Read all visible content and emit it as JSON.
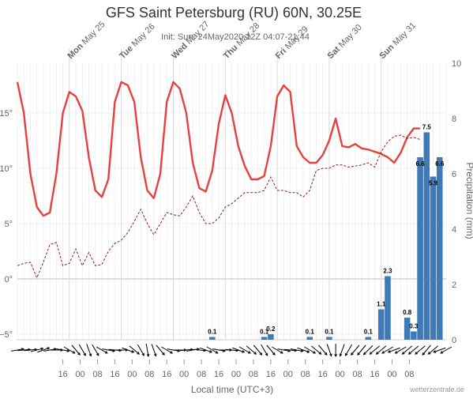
{
  "chart_data": {
    "type": "line",
    "title": "GFS Saint Petersburg (RU) 60N, 30.25E",
    "subtitle": "Init: Sun, 24May2020 12Z 04:07-21:44",
    "xlabel": "Local time (UTC+3)",
    "y2label": "Precipitation (mm)",
    "credit": "wetterzentrale.de",
    "x_hour_ticks": [
      "16",
      "00",
      "08",
      "16",
      "00",
      "08",
      "16",
      "00",
      "08",
      "16",
      "00",
      "08",
      "16",
      "00",
      "08",
      "16",
      "00",
      "08",
      "16",
      "00",
      "08"
    ],
    "day_labels": [
      {
        "bold": "Mon",
        "rest": " May 25"
      },
      {
        "bold": "Tue",
        "rest": " May 26"
      },
      {
        "bold": "Wed",
        "rest": " May 27"
      },
      {
        "bold": "Thu",
        "rest": " May 28"
      },
      {
        "bold": "Fri",
        "rest": " May 29"
      },
      {
        "bold": "Sat",
        "rest": " May 30"
      },
      {
        "bold": "Sun",
        "rest": " May 31"
      }
    ],
    "y_left": {
      "ticks": [
        -5,
        0,
        5,
        10,
        15
      ],
      "tick_labels": [
        "−5°",
        "0°",
        "5°",
        "10°",
        "15°"
      ],
      "range": [
        -5.5,
        19.5
      ]
    },
    "y_right": {
      "ticks": [
        0,
        2,
        4,
        6,
        8,
        10
      ],
      "tick_labels": [
        "0",
        "2",
        "4",
        "6",
        "8",
        "10"
      ],
      "range": [
        0,
        10
      ]
    },
    "x_hours_range": [
      -21,
      177
    ],
    "colors": {
      "temperature": "#e8403f",
      "dewpoint": "#8b2020",
      "precip": "#3d7ab8",
      "grid": "#e6e6e6",
      "zero": "#bbbbbb",
      "wind": "#000000"
    },
    "series": [
      {
        "type": "line",
        "style": "solid",
        "x": [
          -21,
          -18,
          -15,
          -12,
          -9,
          -6,
          -3,
          0,
          3,
          6,
          9,
          12,
          15,
          18,
          21,
          24,
          27,
          30,
          33,
          36,
          39,
          42,
          45,
          48,
          51,
          54,
          57,
          60,
          63,
          66,
          69,
          72,
          75,
          78,
          81,
          84,
          87,
          90,
          93,
          96,
          99,
          102,
          105,
          108,
          111,
          114,
          117,
          120,
          123,
          126,
          129,
          132,
          135,
          138,
          141,
          144,
          147,
          150,
          153,
          156,
          159,
          162,
          165,
          168,
          171,
          174,
          177
        ],
        "values": [
          17.8,
          15,
          9.5,
          6.5,
          5.7,
          6,
          9.5,
          15,
          16.9,
          16.5,
          15.2,
          11,
          8,
          7.4,
          9,
          16,
          17.8,
          17.5,
          16,
          11,
          8,
          7.3,
          9.5,
          16,
          17.8,
          17.2,
          15,
          10.5,
          8.2,
          7.9,
          9.8,
          14,
          16.6,
          15,
          12,
          10.2,
          9,
          9,
          9.3,
          12,
          16.5,
          17.5,
          16.9,
          12,
          11,
          10.5,
          10.5,
          11.2,
          12.5,
          14.5,
          12,
          11.9,
          12.2,
          11.8,
          11.7,
          11.5,
          11.3,
          11,
          10.5,
          11.4,
          12.8,
          13.6,
          13.6,
          null,
          null,
          null,
          null
        ]
      },
      {
        "type": "line",
        "style": "dashed",
        "x": [
          -21,
          -18,
          -15,
          -12,
          -9,
          -6,
          -3,
          0,
          3,
          6,
          9,
          12,
          15,
          18,
          21,
          24,
          27,
          30,
          33,
          36,
          39,
          42,
          45,
          48,
          51,
          54,
          57,
          60,
          63,
          66,
          69,
          72,
          75,
          78,
          81,
          84,
          87,
          90,
          93,
          96,
          99,
          102,
          105,
          108,
          111,
          114,
          117,
          120,
          123,
          126,
          129,
          132,
          135,
          138,
          141,
          144,
          147,
          150,
          153,
          156,
          159,
          162,
          165,
          168,
          171,
          174,
          177
        ],
        "values": [
          1.2,
          1.4,
          1.5,
          0.1,
          1.5,
          3.1,
          3.3,
          1.2,
          1.4,
          2.7,
          1.2,
          2.4,
          1.2,
          1.3,
          2.5,
          3.2,
          3.5,
          4.2,
          5.2,
          6.3,
          5,
          4,
          5,
          6,
          5.8,
          5.7,
          6.5,
          7.5,
          6,
          5,
          5,
          5.5,
          6.5,
          6.8,
          7.3,
          7.8,
          7.8,
          7.8,
          8,
          9.2,
          8,
          8,
          7.8,
          7.8,
          7.4,
          8,
          9.8,
          10,
          10,
          10.3,
          10.3,
          10.1,
          10.2,
          10.3,
          10.5,
          10.1,
          11.5,
          12.4,
          12.9,
          13,
          12.7,
          12.8,
          12.6,
          null,
          null,
          null,
          null
        ]
      }
    ],
    "precip_bars": {
      "x": [
        69,
        93,
        96,
        114,
        123,
        141,
        147,
        150,
        159,
        162,
        165,
        168,
        171,
        174
      ],
      "values": [
        0.1,
        0.1,
        0.2,
        0.1,
        0.1,
        0.1,
        1.1,
        2.3,
        0.8,
        0.3,
        6.6,
        7.5,
        5.9,
        6.6
      ],
      "labels": [
        "0.1",
        "0.1",
        "0.2",
        "0.1",
        "0.1",
        "0.1",
        "1.1",
        "2.3",
        "0.8",
        "0.3",
        "6.6",
        "7.5",
        "5.9",
        "6.6"
      ]
    },
    "wind_arrows": {
      "x": [
        -21,
        -18,
        -15,
        -12,
        -9,
        -6,
        -3,
        0,
        3,
        6,
        9,
        12,
        15,
        18,
        21,
        24,
        27,
        30,
        33,
        36,
        39,
        42,
        45,
        48,
        51,
        54,
        57,
        60,
        63,
        66,
        69,
        72,
        75,
        78,
        81,
        84,
        87,
        90,
        93,
        96,
        99,
        102,
        105,
        108,
        111,
        114,
        117,
        120,
        123,
        126,
        129,
        132,
        135,
        138,
        141,
        144,
        147,
        150,
        153,
        156,
        159,
        162,
        165,
        168,
        171,
        174,
        177
      ],
      "direction_deg": [
        80,
        85,
        85,
        75,
        70,
        80,
        90,
        100,
        120,
        140,
        150,
        160,
        150,
        120,
        100,
        95,
        90,
        110,
        130,
        150,
        170,
        160,
        140,
        120,
        100,
        90,
        85,
        80,
        95,
        110,
        120,
        100,
        90,
        95,
        110,
        120,
        130,
        140,
        150,
        140,
        120,
        100,
        95,
        100,
        110,
        120,
        130,
        140,
        160,
        180,
        200,
        210,
        220,
        220,
        225,
        230,
        230,
        240,
        250,
        240,
        230,
        230,
        230,
        220,
        230,
        250,
        240
      ]
    }
  }
}
